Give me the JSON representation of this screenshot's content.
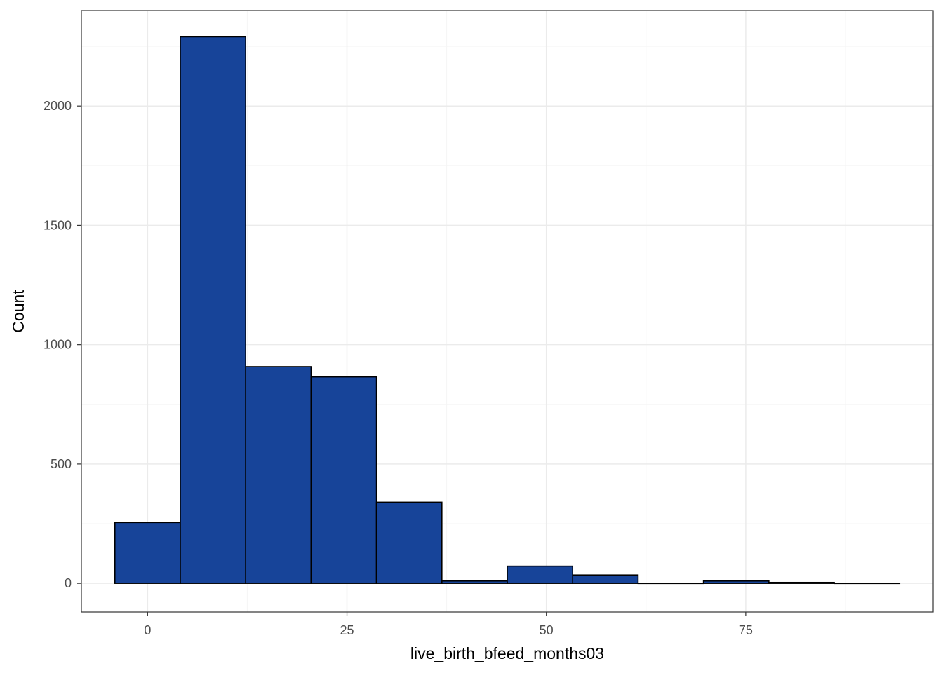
{
  "chart_data": {
    "type": "bar",
    "subtype": "histogram",
    "title": "",
    "xlabel": "live_birth_bfeed_months03",
    "ylabel": "Count",
    "bins": [
      {
        "x0": -4.1,
        "x1": 4.1,
        "count": 255
      },
      {
        "x0": 4.1,
        "x1": 12.3,
        "count": 2290
      },
      {
        "x0": 12.3,
        "x1": 20.5,
        "count": 908
      },
      {
        "x0": 20.5,
        "x1": 28.7,
        "count": 865
      },
      {
        "x0": 28.7,
        "x1": 36.9,
        "count": 340
      },
      {
        "x0": 36.9,
        "x1": 45.1,
        "count": 10
      },
      {
        "x0": 45.1,
        "x1": 53.3,
        "count": 72
      },
      {
        "x0": 53.3,
        "x1": 61.5,
        "count": 35
      },
      {
        "x0": 61.5,
        "x1": 69.7,
        "count": 1
      },
      {
        "x0": 69.7,
        "x1": 77.9,
        "count": 10
      },
      {
        "x0": 77.9,
        "x1": 86.1,
        "count": 4
      },
      {
        "x0": 86.1,
        "x1": 94.3,
        "count": 1
      }
    ],
    "xlim": [
      -8.3,
      98.5
    ],
    "ylim": [
      -120,
      2400
    ],
    "x_ticks": [
      0,
      25,
      50,
      75
    ],
    "x_tick_labels": [
      "0",
      "25",
      "50",
      "75"
    ],
    "x_minor_ticks": [
      12.5,
      37.5,
      62.5,
      87.5
    ],
    "y_ticks": [
      0,
      500,
      1000,
      1500,
      2000
    ],
    "y_tick_labels": [
      "0",
      "500",
      "1000",
      "1500",
      "2000"
    ],
    "y_minor_ticks": [
      250,
      750,
      1250,
      1750,
      2250
    ],
    "grid": true,
    "legend": "none",
    "colors": {
      "bar_fill": "#174499",
      "bar_outline": "#000000",
      "panel_border": "#333333",
      "grid_major": "#ebebeb",
      "grid_minor": "#f5f5f5",
      "tick_label": "#4d4d4d",
      "axis_title": "#000000"
    }
  }
}
